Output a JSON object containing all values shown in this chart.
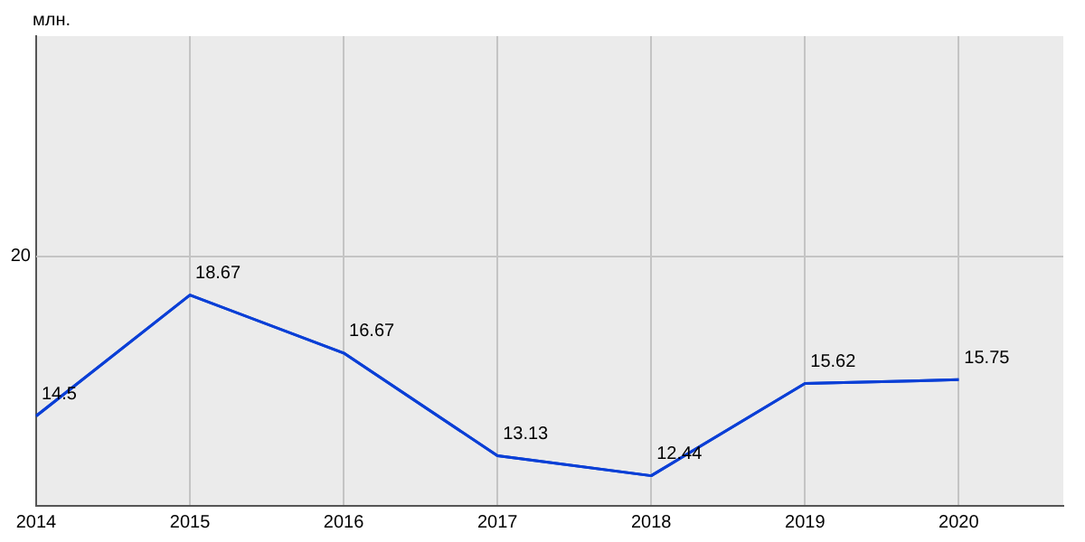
{
  "chart_data": {
    "type": "line",
    "ylabel": "млн.",
    "x": [
      2014,
      2015,
      2016,
      2017,
      2018,
      2019,
      2020
    ],
    "series": [
      {
        "color": "#0a3fd6",
        "values": [
          14.5,
          18.67,
          16.67,
          13.13,
          12.44,
          15.62,
          15.75
        ]
      }
    ],
    "xlim": [
      2014,
      2020.68
    ],
    "xticks": [
      2014,
      2015,
      2016,
      2017,
      2018,
      2019,
      2020
    ],
    "ylim": [
      11.4,
      27.6
    ],
    "ref_lines": [
      {
        "axis": "y",
        "value": 20,
        "label": "20"
      }
    ],
    "grid": true,
    "legend": false,
    "marker": "none",
    "line_style": "solid",
    "data_labels": true
  }
}
